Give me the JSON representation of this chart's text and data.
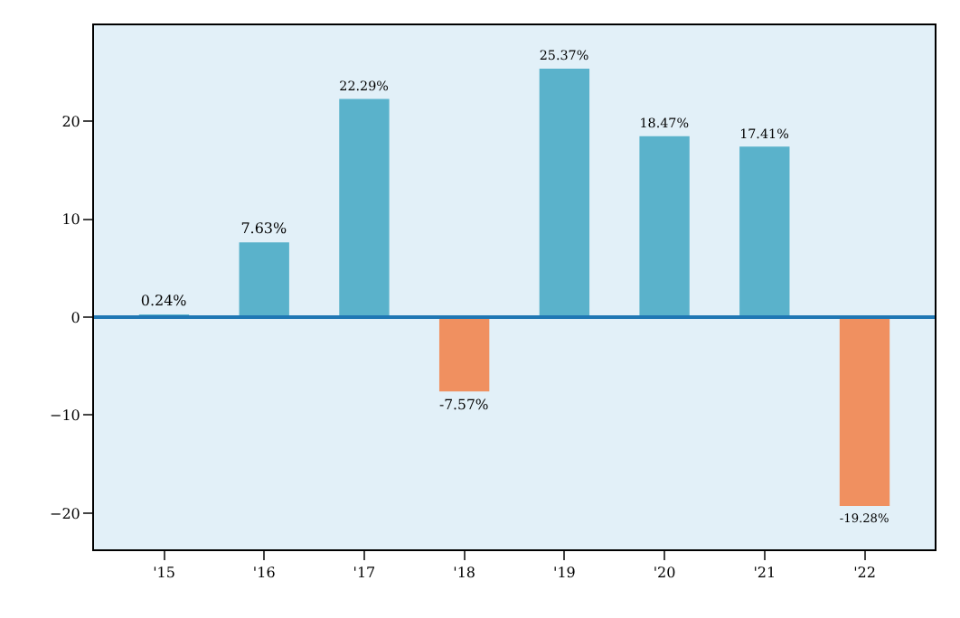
{
  "chart_data": {
    "type": "bar",
    "categories": [
      "'15",
      "'16",
      "'17",
      "'18",
      "'19",
      "'20",
      "'21",
      "'22"
    ],
    "values": [
      0.24,
      7.63,
      22.29,
      -7.57,
      25.37,
      18.47,
      17.41,
      -19.28
    ],
    "value_labels": [
      "0.24%",
      "7.63%",
      "22.29%",
      "-7.57%",
      "25.37%",
      "18.47%",
      "17.41%",
      "-19.28%"
    ],
    "colors": [
      "#5ab2cb",
      "#5ab2cb",
      "#5ab2cb",
      "#f09060",
      "#5ab2cb",
      "#5ab2cb",
      "#5ab2cb",
      "#f09060"
    ],
    "ylim": [
      -23.7,
      29.8
    ],
    "yticks": [
      {
        "value": -20,
        "label": "−20"
      },
      {
        "value": -10,
        "label": "−10"
      },
      0,
      10,
      20
    ],
    "ref_lines": [
      {
        "axis": "y",
        "value": 0,
        "label": null,
        "color": "#1f77b4"
      }
    ],
    "grid": false,
    "legend": false
  }
}
